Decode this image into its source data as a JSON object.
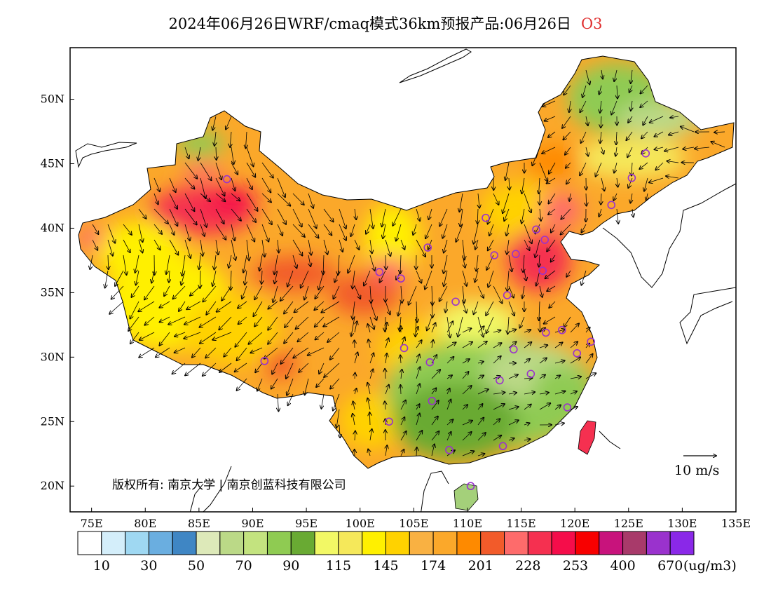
{
  "title": {
    "main": "2024年06月26日WRF/cmaq模式36km预报产品:06月26日",
    "variable": "O3"
  },
  "axes": {
    "lon_labels": [
      "75E",
      "80E",
      "85E",
      "90E",
      "95E",
      "100E",
      "105E",
      "110E",
      "115E",
      "120E",
      "125E",
      "130E",
      "135E"
    ],
    "lat_labels": [
      "50N",
      "45N",
      "40N",
      "35N",
      "30N",
      "25N",
      "20N"
    ],
    "lon_range": [
      73,
      135
    ],
    "lat_range": [
      18,
      54
    ]
  },
  "copyright": "版权所有: 南京大学 | 南京创蓝科技有限公司",
  "wind_reference": {
    "label": "10 m/s"
  },
  "legend": {
    "colors": [
      "#ffffff",
      "#d4eefa",
      "#9fd8f2",
      "#6aaee0",
      "#3f86c4",
      "#dde9b9",
      "#bbd987",
      "#c3e37f",
      "#8fcb52",
      "#69aa33",
      "#f2f865",
      "#f5e85a",
      "#fff000",
      "#ffd200",
      "#f9b142",
      "#fba82a",
      "#fe8a00",
      "#f25b2a",
      "#fe6b6b",
      "#f53050",
      "#f50d4a",
      "#f80000",
      "#c8137c",
      "#a83a6a",
      "#9a32cd",
      "#8a28e8"
    ],
    "labels": [
      "10",
      "30",
      "50",
      "70",
      "90",
      "115",
      "145",
      "174",
      "201",
      "228",
      "253",
      "400",
      "670"
    ],
    "unit": "(ug/m3)"
  },
  "colors": {
    "high": "#f25b2a",
    "very_high": "#f53050",
    "medium": "#ffd200",
    "low": "#8fcb52",
    "ocean": "#ffffff",
    "city_marker": "#9a32cd"
  },
  "cities": [
    {
      "lon": 87.6,
      "lat": 43.8
    },
    {
      "lon": 91.1,
      "lat": 29.7
    },
    {
      "lon": 101.8,
      "lat": 36.6
    },
    {
      "lon": 103.8,
      "lat": 36.1
    },
    {
      "lon": 106.3,
      "lat": 38.5
    },
    {
      "lon": 108.9,
      "lat": 34.3
    },
    {
      "lon": 111.7,
      "lat": 40.8
    },
    {
      "lon": 112.5,
      "lat": 37.9
    },
    {
      "lon": 114.5,
      "lat": 38.0
    },
    {
      "lon": 116.4,
      "lat": 39.9
    },
    {
      "lon": 117.2,
      "lat": 39.1
    },
    {
      "lon": 117.0,
      "lat": 36.7
    },
    {
      "lon": 113.7,
      "lat": 34.8
    },
    {
      "lon": 123.4,
      "lat": 41.8
    },
    {
      "lon": 125.3,
      "lat": 43.9
    },
    {
      "lon": 126.6,
      "lat": 45.8
    },
    {
      "lon": 104.1,
      "lat": 30.7
    },
    {
      "lon": 106.5,
      "lat": 29.6
    },
    {
      "lon": 106.7,
      "lat": 26.6
    },
    {
      "lon": 102.7,
      "lat": 25.0
    },
    {
      "lon": 108.3,
      "lat": 22.8
    },
    {
      "lon": 113.3,
      "lat": 23.1
    },
    {
      "lon": 110.3,
      "lat": 20.0
    },
    {
      "lon": 113.0,
      "lat": 28.2
    },
    {
      "lon": 115.9,
      "lat": 28.7
    },
    {
      "lon": 114.3,
      "lat": 30.6
    },
    {
      "lon": 117.3,
      "lat": 31.9
    },
    {
      "lon": 118.8,
      "lat": 32.1
    },
    {
      "lon": 121.5,
      "lat": 31.2
    },
    {
      "lon": 120.2,
      "lat": 30.3
    },
    {
      "lon": 119.3,
      "lat": 26.1
    }
  ]
}
